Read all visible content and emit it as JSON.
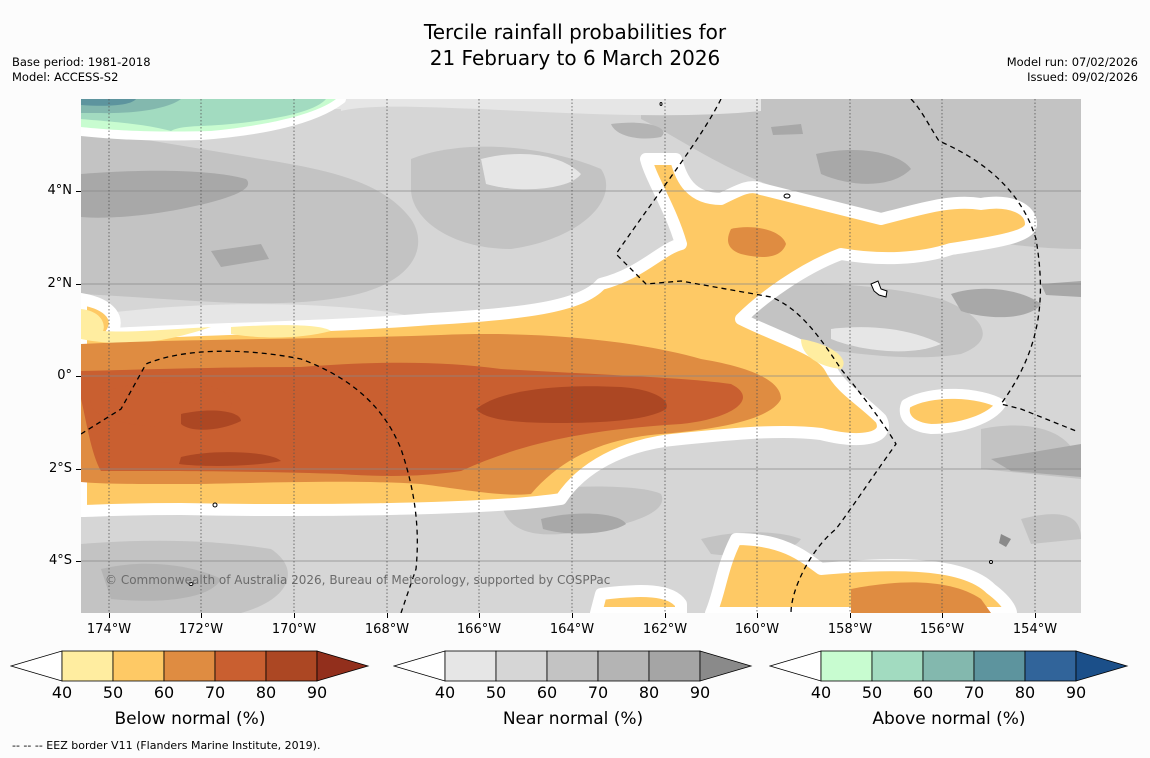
{
  "title": {
    "line1": "Tercile rainfall probabilities for",
    "line2": "21 February to 6 March 2026"
  },
  "meta_left": {
    "base_period": "Base period: 1981-2018",
    "model": "Model: ACCESS-S2"
  },
  "meta_right": {
    "model_run": "Model run: 07/02/2026",
    "issued": "Issued: 09/02/2026"
  },
  "map": {
    "copyright": "© Commonwealth of Australia 2026, Bureau of Meteorology, supported by COSPPac",
    "lat_labels": [
      "4°N",
      "2°N",
      "0°",
      "2°S",
      "4°S"
    ],
    "lon_labels": [
      "174°W",
      "172°W",
      "170°W",
      "168°W",
      "166°W",
      "164°W",
      "162°W",
      "160°W",
      "158°W",
      "156°W",
      "154°W"
    ]
  },
  "colorbars": [
    {
      "label": "Below normal (%)",
      "ticks": [
        "40",
        "50",
        "60",
        "70",
        "80",
        "90"
      ],
      "colors": [
        "#ffeda0",
        "#fec965",
        "#df8c41",
        "#c95f30",
        "#ac4723",
        "#922f1c"
      ]
    },
    {
      "label": "Near normal (%)",
      "ticks": [
        "40",
        "50",
        "60",
        "70",
        "80",
        "90"
      ],
      "colors": [
        "#e6e6e6",
        "#d6d6d6",
        "#c3c3c3",
        "#b4b4b4",
        "#a5a5a5",
        "#8a8a8a"
      ]
    },
    {
      "label": "Above normal (%)",
      "ticks": [
        "40",
        "50",
        "60",
        "70",
        "80",
        "90"
      ],
      "colors": [
        "#c8fcd0",
        "#a2dbc0",
        "#83b8ae",
        "#5d949e",
        "#31649a",
        "#1b4f89"
      ]
    }
  ],
  "footnote": "--  --  -- EEZ border V11 (Flanders Marine Institute, 2019)."
}
